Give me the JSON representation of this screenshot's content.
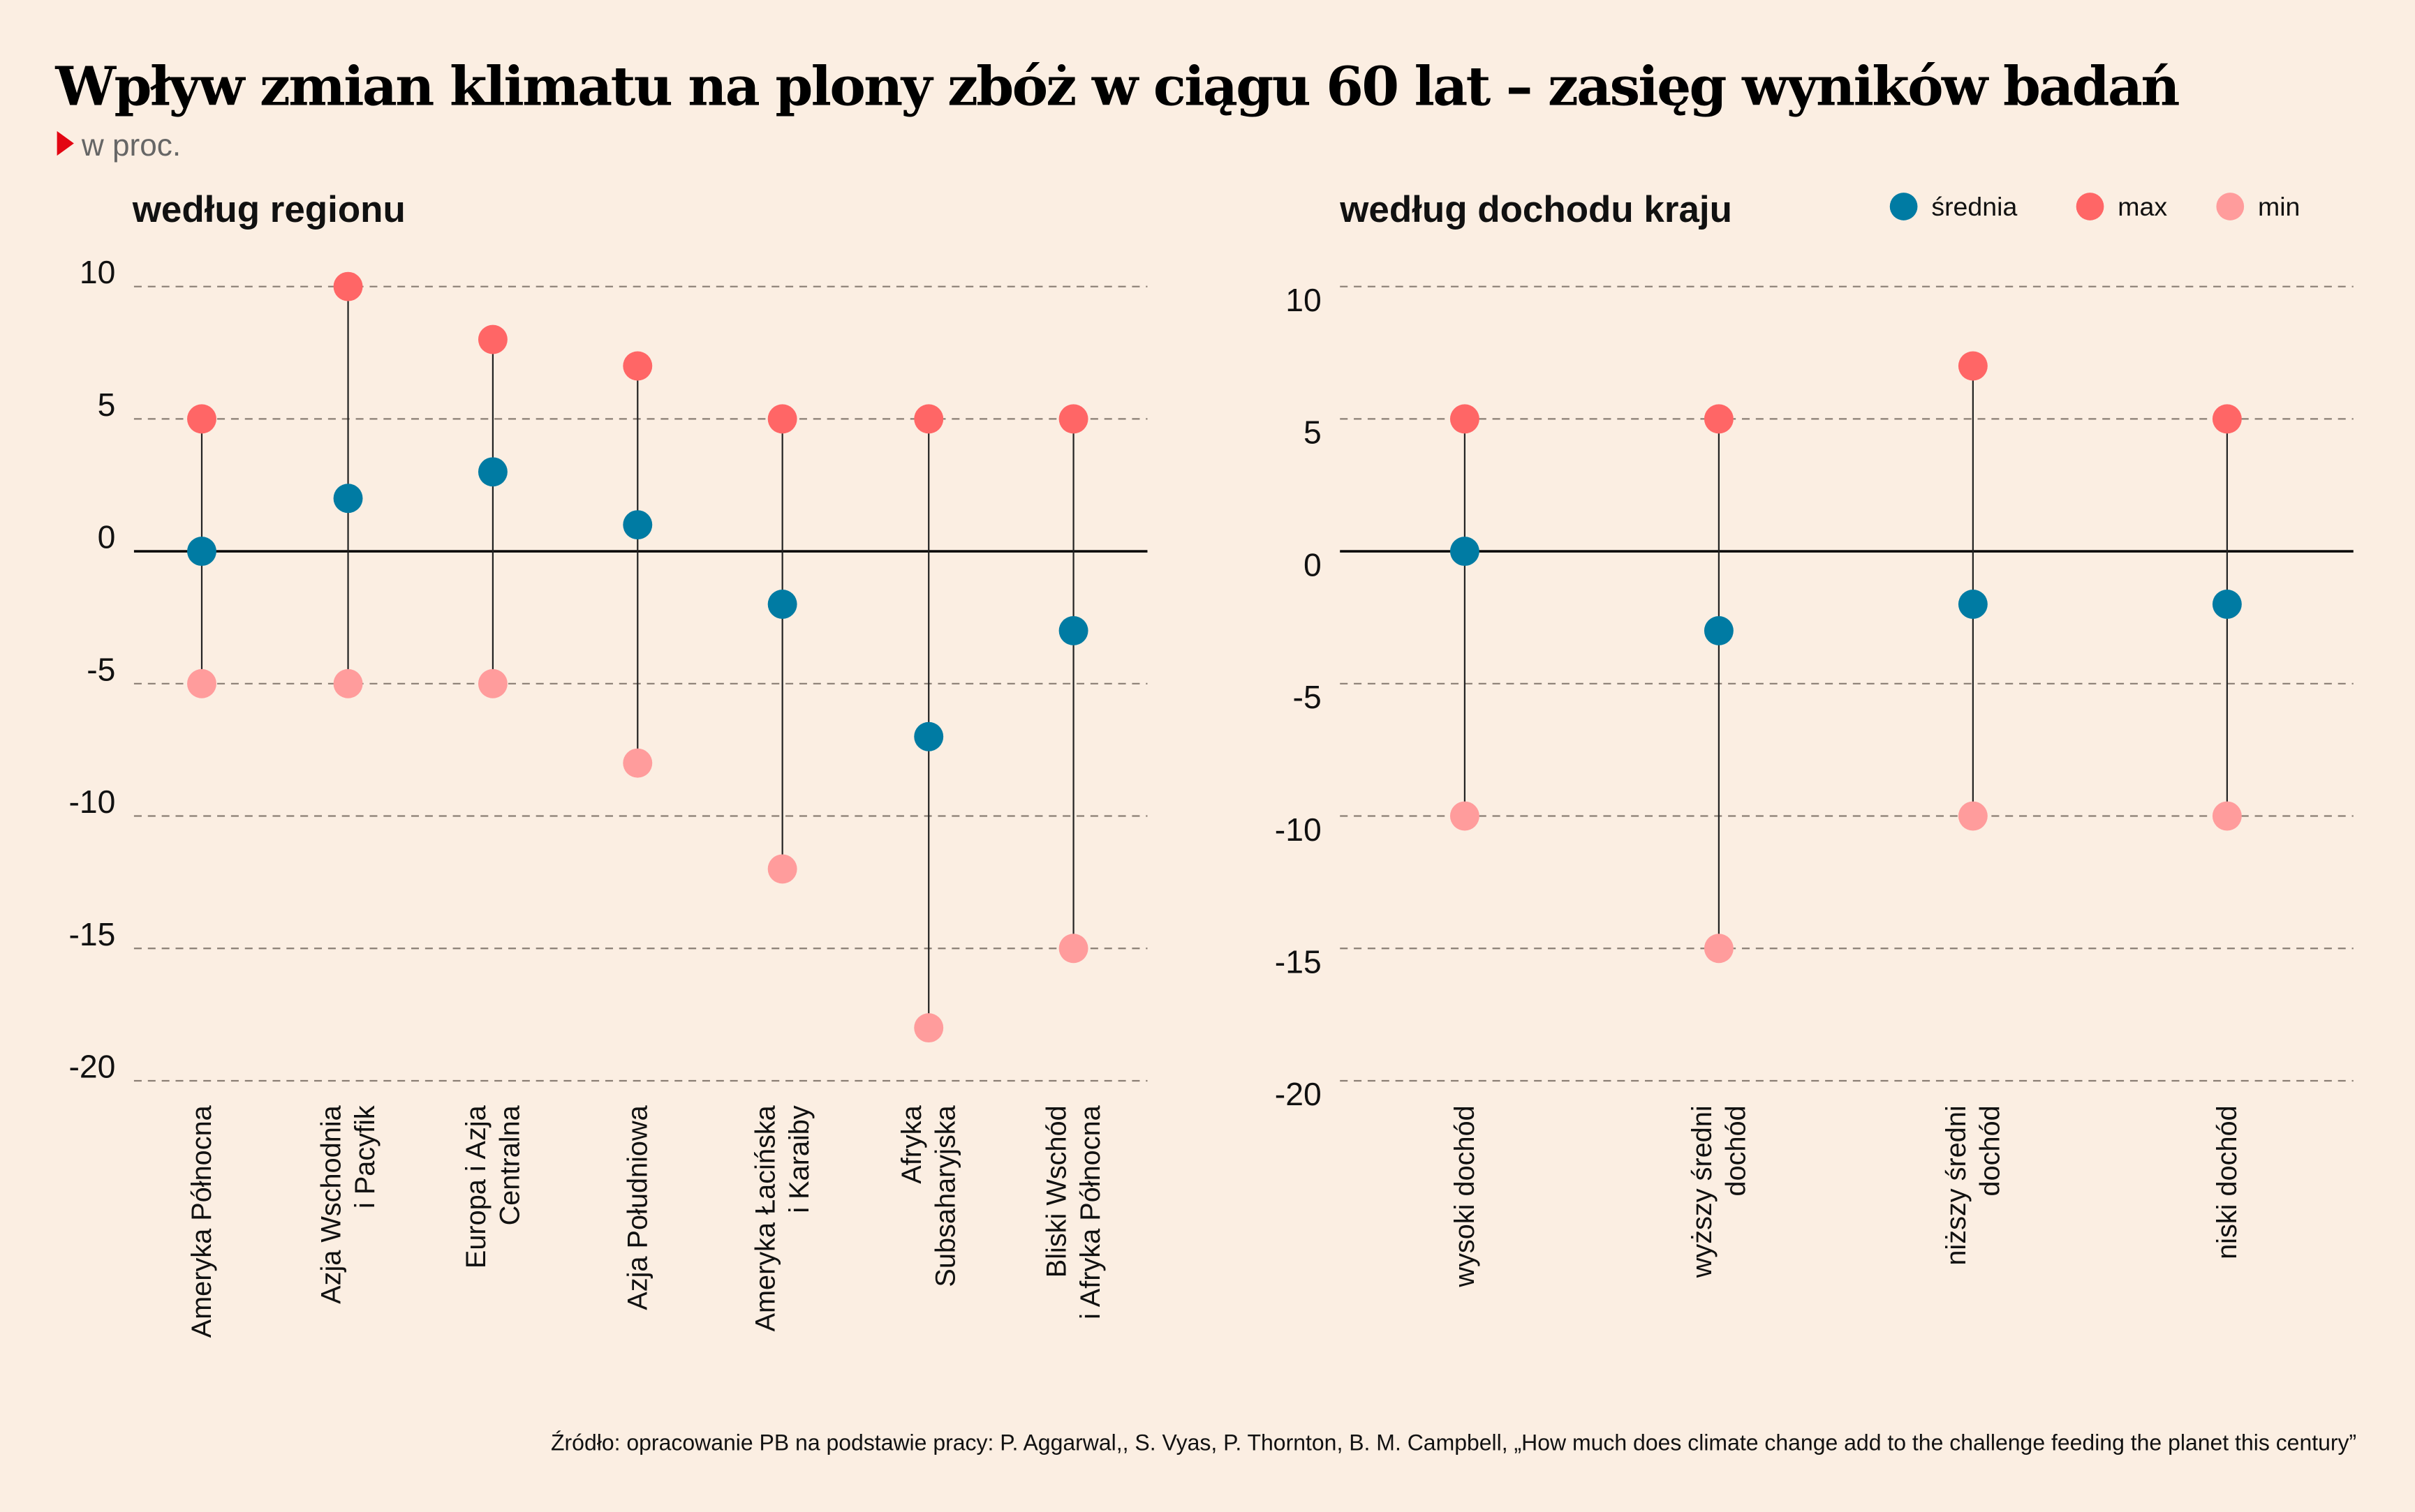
{
  "title": "Wpływ zmian klimatu na plony zbóż w ciągu 60 lat – zasięg wyników badań",
  "unit": "w proc.",
  "source": "Źródło: opracowanie PB na podstawie pracy: P. Aggarwal,, S. Vyas, P. Thornton, B. M. Campbell, „How much does climate change add to the challenge feeding the planet this century”",
  "legend": [
    {
      "key": "mean",
      "label": "średnia",
      "color": "#007BA3"
    },
    {
      "key": "max",
      "label": "max",
      "color": "#FF6666"
    },
    {
      "key": "min",
      "label": "min",
      "color": "#FF9C9C"
    }
  ],
  "chart_data": [
    {
      "type": "dot-range",
      "title": "według regionu",
      "ylim": [
        -20,
        10
      ],
      "yticks": [
        10,
        5,
        0,
        -5,
        -10,
        -15,
        -20
      ],
      "grid": true,
      "categories": [
        [
          "Ameryka Północna"
        ],
        [
          "Azja Wschodnia",
          "i Pacyfik"
        ],
        [
          "Europa i Azja",
          "Centralna"
        ],
        [
          "Azja Południowa"
        ],
        [
          "Ameryka Łacińska",
          "i Karaiby"
        ],
        [
          "Afryka",
          "Subsaharyjska"
        ],
        [
          "Bliski Wschód",
          "i Afryka Północna"
        ]
      ],
      "series": [
        {
          "name": "max",
          "values": [
            5,
            10,
            8,
            7,
            5,
            5,
            5
          ]
        },
        {
          "name": "średnia",
          "values": [
            0,
            2,
            3,
            1,
            -2,
            -7,
            -3
          ]
        },
        {
          "name": "min",
          "values": [
            -5,
            -5,
            -5,
            -8,
            -12,
            -18,
            -15
          ]
        }
      ]
    },
    {
      "type": "dot-range",
      "title": "według dochodu kraju",
      "ylim": [
        -20,
        10
      ],
      "yticks": [
        10,
        5,
        0,
        -5,
        -10,
        -15,
        -20
      ],
      "grid": true,
      "legend_position": "top-right",
      "categories": [
        [
          "wysoki dochód"
        ],
        [
          "wyższy średni",
          "dochód"
        ],
        [
          "niższy średni",
          "dochód"
        ],
        [
          "niski dochód"
        ]
      ],
      "series": [
        {
          "name": "max",
          "values": [
            5,
            5,
            7,
            5
          ]
        },
        {
          "name": "średnia",
          "values": [
            0,
            -3,
            -2,
            -2
          ]
        },
        {
          "name": "min",
          "values": [
            -10,
            -15,
            -10,
            -10
          ]
        }
      ]
    }
  ]
}
